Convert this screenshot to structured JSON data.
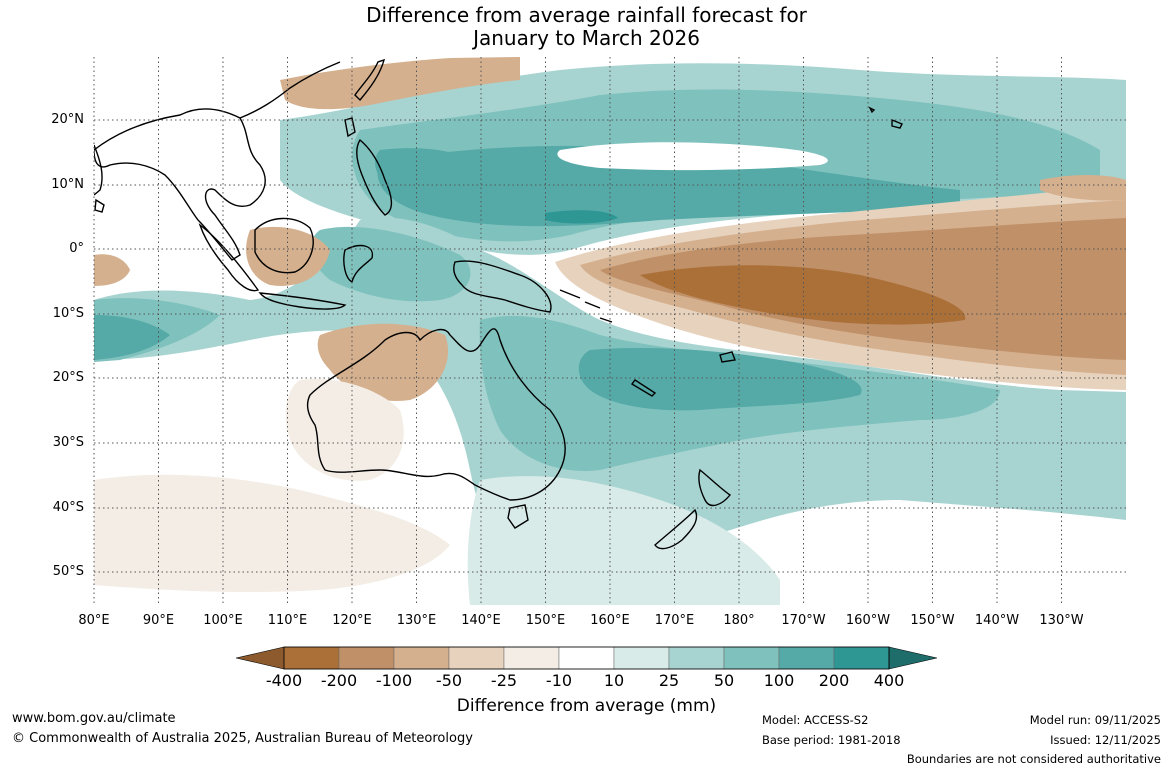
{
  "title_line1": "Difference from average rainfall forecast for",
  "title_line2": "January to March 2026",
  "latitude_labels": [
    "20°N",
    "10°N",
    "0°",
    "10°S",
    "20°S",
    "30°S",
    "40°S",
    "50°S"
  ],
  "longitude_labels": [
    "80°E",
    "90°E",
    "100°E",
    "110°E",
    "120°E",
    "130°E",
    "140°E",
    "150°E",
    "160°E",
    "170°E",
    "180°",
    "170°W",
    "160°W",
    "150°W",
    "140°W",
    "130°W"
  ],
  "colorbar": {
    "labels": [
      "-400",
      "-200",
      "-100",
      "-50",
      "-25",
      "-10",
      "10",
      "25",
      "50",
      "100",
      "200",
      "400"
    ],
    "colors": [
      "#8c5a2c",
      "#ab7038",
      "#c09068",
      "#d4b08e",
      "#e7d2bd",
      "#f3ede6",
      "#ffffff",
      "#d8ebe9",
      "#a7d4d1",
      "#7fc1bd",
      "#55aaa7",
      "#2e9794",
      "#1f6d6b"
    ],
    "title": "Difference from average (mm)"
  },
  "footer": {
    "website": "www.bom.gov.au/climate",
    "copyright": "© Commonwealth of Australia 2025, Australian Bureau of Meteorology",
    "model": "Model: ACCESS-S2",
    "base_period": "Base period: 1981-2018",
    "model_run": "Model run: 09/11/2025",
    "issued": "Issued: 12/11/2025",
    "boundaries_note": "Boundaries are not considered authoritative"
  }
}
